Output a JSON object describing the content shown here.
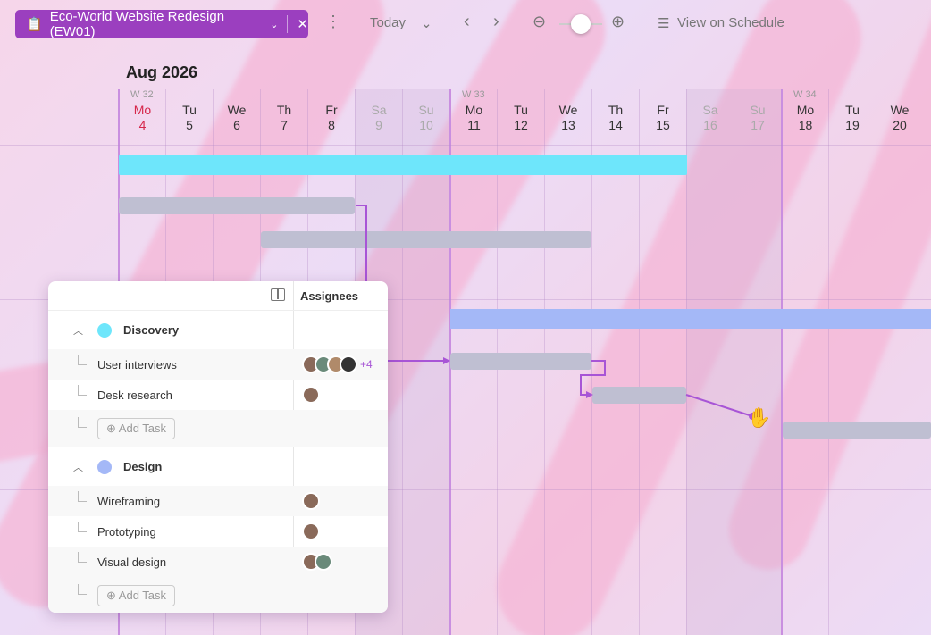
{
  "toolbar": {
    "project": "Eco-World Website Redesign (EW01)",
    "today": "Today",
    "view_schedule": "View on Schedule"
  },
  "timeline": {
    "month": "Aug 2026",
    "days": [
      {
        "w": "W 32",
        "d": "Mo",
        "n": "4"
      },
      {
        "d": "Tu",
        "n": "5"
      },
      {
        "d": "We",
        "n": "6"
      },
      {
        "d": "Th",
        "n": "7"
      },
      {
        "d": "Fr",
        "n": "8"
      },
      {
        "d": "Sa",
        "n": "9"
      },
      {
        "d": "Su",
        "n": "10"
      },
      {
        "w": "W 33",
        "d": "Mo",
        "n": "11"
      },
      {
        "d": "Tu",
        "n": "12"
      },
      {
        "d": "We",
        "n": "13"
      },
      {
        "d": "Th",
        "n": "14"
      },
      {
        "d": "Fr",
        "n": "15"
      },
      {
        "d": "Sa",
        "n": "16"
      },
      {
        "d": "Su",
        "n": "17"
      },
      {
        "w": "W 34",
        "d": "Mo",
        "n": "18"
      },
      {
        "d": "Tu",
        "n": "19"
      },
      {
        "d": "We",
        "n": "20"
      }
    ]
  },
  "panel": {
    "assignees_header": "Assignees",
    "add_task": "Add Task",
    "groups": [
      {
        "name": "Discovery",
        "color": "#6ee6fb",
        "tasks": [
          {
            "name": "User interviews",
            "extra": "+4"
          },
          {
            "name": "Desk research"
          }
        ]
      },
      {
        "name": "Design",
        "color": "#a4b8f7",
        "tasks": [
          {
            "name": "Wireframing"
          },
          {
            "name": "Prototyping"
          },
          {
            "name": "Visual design"
          }
        ]
      }
    ]
  },
  "colors": {
    "accent": "#9b3fbf",
    "today": "#d6264a",
    "discovery": "#6ee6fb",
    "design": "#a4b8f7"
  }
}
